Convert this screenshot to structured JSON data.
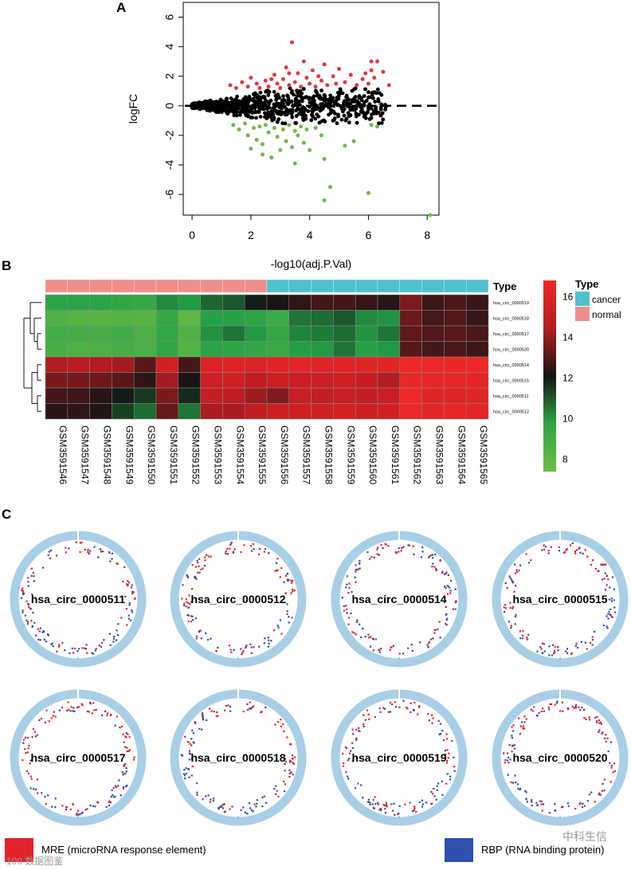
{
  "panels": {
    "a": "A",
    "b": "B",
    "c": "C"
  },
  "volcano": {
    "chart_data": {
      "type": "scatter",
      "title": "",
      "xlabel": "-log10(adj.P.Val)",
      "ylabel": "logFC",
      "xlim": [
        -0.3,
        8.4
      ],
      "ylim": [
        -7.4,
        7.0
      ],
      "xticks": [
        "0",
        "2",
        "4",
        "6",
        "8"
      ],
      "yticks": [
        "-6",
        "-4",
        "-2",
        "0",
        "2",
        "4",
        "6"
      ],
      "threshold_line_y": 0,
      "series": [
        {
          "name": "up",
          "color": "#e2393a",
          "points": [
            [
              1.3,
              1.4
            ],
            [
              1.5,
              1.2
            ],
            [
              1.7,
              1.6
            ],
            [
              1.9,
              1.3
            ],
            [
              2.0,
              1.9
            ],
            [
              2.2,
              1.5
            ],
            [
              2.3,
              1.2
            ],
            [
              2.5,
              1.7
            ],
            [
              2.6,
              1.3
            ],
            [
              2.8,
              2.1
            ],
            [
              2.9,
              1.5
            ],
            [
              3.0,
              1.2
            ],
            [
              3.1,
              1.8
            ],
            [
              3.2,
              2.6
            ],
            [
              3.3,
              1.4
            ],
            [
              3.4,
              4.3
            ],
            [
              3.5,
              1.6
            ],
            [
              3.6,
              2.2
            ],
            [
              3.7,
              1.3
            ],
            [
              3.8,
              3.0
            ],
            [
              3.9,
              1.9
            ],
            [
              4.0,
              1.5
            ],
            [
              4.1,
              2.4
            ],
            [
              4.2,
              1.3
            ],
            [
              4.4,
              1.7
            ],
            [
              4.5,
              2.8
            ],
            [
              4.6,
              1.4
            ],
            [
              4.8,
              2.0
            ],
            [
              4.9,
              1.5
            ],
            [
              5.0,
              2.5
            ],
            [
              5.2,
              1.6
            ],
            [
              5.4,
              2.1
            ],
            [
              5.6,
              1.4
            ],
            [
              5.8,
              1.8
            ],
            [
              5.9,
              2.2
            ],
            [
              6.0,
              1.5
            ],
            [
              6.1,
              2.4
            ],
            [
              6.2,
              1.9
            ],
            [
              6.3,
              3.0
            ],
            [
              6.5,
              2.3
            ],
            [
              6.7,
              1.4
            ],
            [
              6.1,
              3.0
            ],
            [
              3.3,
              2.2
            ],
            [
              2.7,
              1.8
            ],
            [
              4.3,
              2.0
            ]
          ]
        },
        {
          "name": "down",
          "color": "#6dbb45",
          "points": [
            [
              1.4,
              -1.3
            ],
            [
              1.6,
              -1.6
            ],
            [
              1.8,
              -1.2
            ],
            [
              1.9,
              -2.0
            ],
            [
              2.1,
              -1.5
            ],
            [
              2.2,
              -2.3
            ],
            [
              2.3,
              -1.4
            ],
            [
              2.4,
              -2.6
            ],
            [
              2.5,
              -1.3
            ],
            [
              2.6,
              -1.8
            ],
            [
              2.7,
              -3.5
            ],
            [
              2.8,
              -1.5
            ],
            [
              2.9,
              -2.1
            ],
            [
              3.0,
              -3.0
            ],
            [
              3.1,
              -1.6
            ],
            [
              3.2,
              -2.4
            ],
            [
              3.3,
              -1.3
            ],
            [
              3.4,
              -2.8
            ],
            [
              3.5,
              -1.7
            ],
            [
              3.6,
              -2.0
            ],
            [
              3.7,
              -1.4
            ],
            [
              3.8,
              -2.5
            ],
            [
              3.9,
              -1.6
            ],
            [
              4.0,
              -3.0
            ],
            [
              4.2,
              -1.5
            ],
            [
              4.4,
              -2.0
            ],
            [
              4.5,
              -3.6
            ],
            [
              4.5,
              -6.4
            ],
            [
              4.7,
              -5.5
            ],
            [
              5.2,
              -2.7
            ],
            [
              5.5,
              -2.4
            ],
            [
              6.0,
              -5.9
            ],
            [
              6.1,
              -1.3
            ],
            [
              6.3,
              -1.4
            ],
            [
              8.1,
              -7.4
            ],
            [
              2.0,
              -2.9
            ],
            [
              3.5,
              -3.9
            ],
            [
              2.4,
              -3.3
            ]
          ]
        },
        {
          "name": "ns",
          "color": "#000000",
          "points_note": "dense cloud of non-significant probes near logFC 0"
        }
      ]
    }
  },
  "heatmap": {
    "legend_title": "Type",
    "legend_items": [
      {
        "label": "cancer",
        "color": "#4fc1cc"
      },
      {
        "label": "normal",
        "color": "#ee8f8c"
      }
    ],
    "type_label": "Type",
    "colorbar_ticks": [
      "8",
      "10",
      "12",
      "14",
      "16"
    ],
    "chart_data": {
      "type": "heatmap",
      "columns": [
        "GSM3591546",
        "GSM3591547",
        "GSM3591548",
        "GSM3591549",
        "GSM3591550",
        "GSM3591551",
        "GSM3591552",
        "GSM3591553",
        "GSM3591554",
        "GSM3591555",
        "GSM3591556",
        "GSM3591557",
        "GSM3591558",
        "GSM3591559",
        "GSM3591560",
        "GSM3591561",
        "GSM3591562",
        "GSM3591563",
        "GSM3591564",
        "GSM3591565"
      ],
      "column_types": [
        "normal",
        "normal",
        "normal",
        "normal",
        "normal",
        "normal",
        "normal",
        "normal",
        "normal",
        "normal",
        "cancer",
        "cancer",
        "cancer",
        "cancer",
        "cancer",
        "cancer",
        "cancer",
        "cancer",
        "cancer",
        "cancer"
      ],
      "rows": [
        "hsa_circ_0000519",
        "hsa_circ_0000518",
        "hsa_circ_0000517",
        "hsa_circ_0000520",
        "hsa_circ_0000514",
        "hsa_circ_0000515",
        "hsa_circ_0000511",
        "hsa_circ_0000512"
      ],
      "value_range": [
        7.4,
        16.8
      ],
      "values": [
        [
          9.8,
          9.9,
          9.9,
          9.7,
          9.6,
          10.5,
          10.3,
          11.0,
          11.2,
          12.0,
          12.2,
          12.5,
          12.8,
          12.8,
          12.6,
          12.4,
          13.6,
          12.7,
          12.9,
          12.6
        ],
        [
          8.6,
          8.3,
          8.2,
          8.4,
          8.3,
          9.5,
          8.0,
          10.1,
          10.0,
          9.8,
          9.2,
          10.8,
          10.9,
          11.2,
          10.5,
          10.4,
          13.4,
          12.8,
          13.0,
          12.6
        ],
        [
          9.0,
          9.0,
          8.9,
          9.1,
          8.7,
          9.6,
          8.5,
          10.4,
          10.8,
          10.3,
          9.6,
          10.6,
          10.7,
          10.9,
          10.4,
          10.8,
          13.2,
          13.0,
          13.1,
          12.9
        ],
        [
          8.8,
          8.6,
          8.7,
          8.9,
          8.7,
          9.7,
          8.4,
          9.9,
          9.8,
          9.6,
          9.4,
          10.2,
          10.3,
          10.8,
          10.1,
          10.3,
          13.1,
          12.8,
          12.9,
          12.7
        ],
        [
          14.4,
          14.5,
          14.4,
          14.2,
          13.1,
          15.2,
          12.8,
          15.7,
          15.8,
          15.7,
          16.0,
          16.1,
          16.0,
          16.0,
          15.9,
          16.0,
          16.7,
          16.6,
          16.5,
          16.6
        ],
        [
          13.6,
          13.5,
          13.4,
          13.1,
          12.5,
          14.2,
          12.2,
          15.0,
          15.1,
          14.6,
          14.9,
          14.9,
          14.9,
          15.1,
          14.7,
          14.4,
          16.5,
          16.3,
          16.4,
          16.2
        ],
        [
          12.8,
          12.7,
          12.4,
          12.0,
          11.6,
          13.6,
          11.8,
          14.7,
          14.6,
          14.1,
          13.7,
          14.8,
          14.7,
          14.9,
          14.7,
          14.8,
          16.8,
          16.0,
          15.9,
          16.0
        ],
        [
          12.4,
          12.5,
          12.3,
          11.5,
          10.9,
          13.3,
          10.8,
          14.3,
          14.3,
          14.6,
          14.9,
          15.0,
          15.1,
          15.3,
          14.9,
          15.2,
          16.6,
          16.2,
          16.3,
          16.1
        ]
      ]
    }
  },
  "circles": [
    {
      "label": "hsa_circ_0000511",
      "seed": 11
    },
    {
      "label": "hsa_circ_0000512",
      "seed": 12
    },
    {
      "label": "hsa_circ_0000514",
      "seed": 14
    },
    {
      "label": "hsa_circ_0000515",
      "seed": 15
    },
    {
      "label": "hsa_circ_0000517",
      "seed": 17
    },
    {
      "label": "hsa_circ_0000518",
      "seed": 18
    },
    {
      "label": "hsa_circ_0000519",
      "seed": 19
    },
    {
      "label": "hsa_circ_0000520",
      "seed": 20
    }
  ],
  "legend": {
    "mre_label": "MRE (microRNA response element)",
    "mre_color": "#e2232a",
    "rbp_label": "RBP (RNA binding protein)",
    "rbp_color": "#3050b0"
  },
  "watermark": {
    "left": "100 数据图鉴",
    "right": "中科生信"
  }
}
